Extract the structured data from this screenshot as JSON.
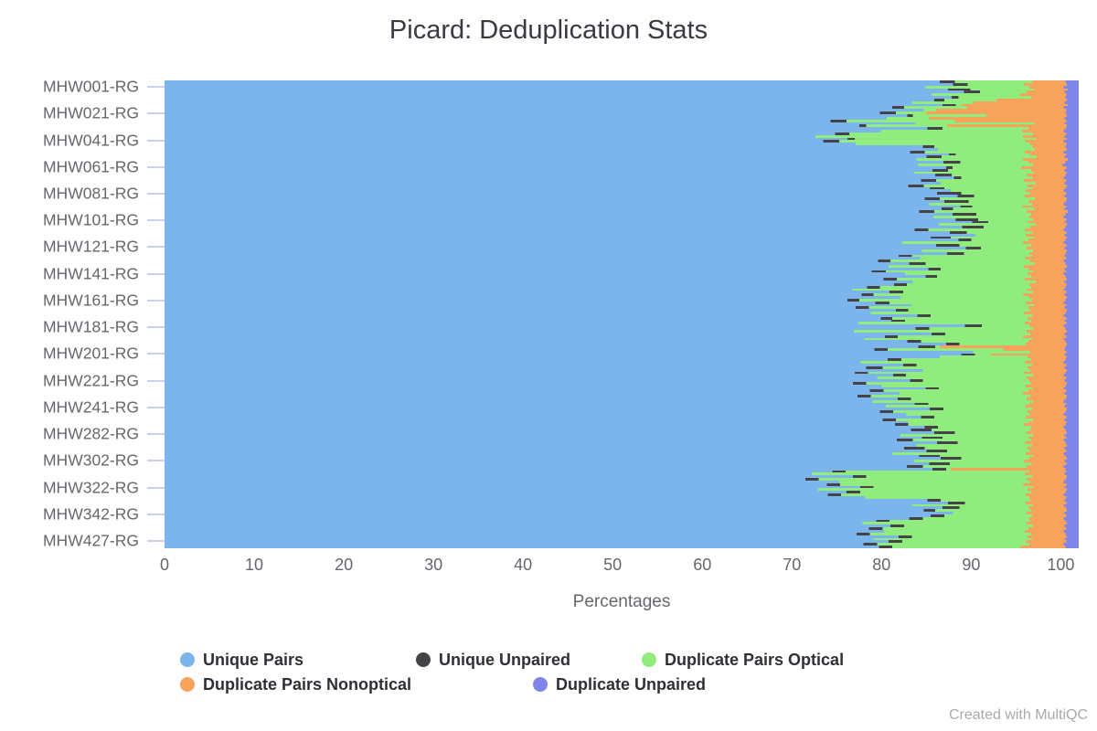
{
  "title": "Picard: Deduplication Stats",
  "xlabel": "Percentages",
  "watermark": "Created with MultiQC",
  "axes": {
    "x_ticks": [
      0,
      10,
      20,
      30,
      40,
      50,
      60,
      70,
      80,
      90,
      100
    ],
    "x_max": 102,
    "y_categories": [
      "MHW001-RG",
      "MHW021-RG",
      "MHW041-RG",
      "MHW061-RG",
      "MHW081-RG",
      "MHW101-RG",
      "MHW121-RG",
      "MHW141-RG",
      "MHW161-RG",
      "MHW181-RG",
      "MHW201-RG",
      "MHW221-RG",
      "MHW241-RG",
      "MHW282-RG",
      "MHW302-RG",
      "MHW322-RG",
      "MHW342-RG",
      "MHW427-RG"
    ]
  },
  "legend": {
    "items": [
      {
        "label": "Unique Pairs",
        "color": "#7cb5ec"
      },
      {
        "label": "Unique Unpaired",
        "color": "#434348"
      },
      {
        "label": "Duplicate Pairs Optical",
        "color": "#90ed7d"
      },
      {
        "label": "Duplicate Pairs Nonoptical",
        "color": "#f7a35c"
      },
      {
        "label": "Duplicate Unpaired",
        "color": "#8085e9"
      }
    ]
  },
  "chart_data": {
    "type": "bar",
    "stacked": true,
    "horizontal": true,
    "percent": true,
    "title": "Picard: Deduplication Stats",
    "xlabel": "Percentages",
    "xlim": [
      0,
      102
    ],
    "grid": false,
    "legend_position": "bottom",
    "colors": [
      "#7cb5ec",
      "#434348",
      "#90ed7d",
      "#f7a35c",
      "#8085e9"
    ],
    "categories": [
      "MHW001-RG",
      "MHW021-RG",
      "MHW041-RG",
      "MHW061-RG",
      "MHW081-RG",
      "MHW101-RG",
      "MHW121-RG",
      "MHW141-RG",
      "MHW161-RG",
      "MHW181-RG",
      "MHW201-RG",
      "MHW221-RG",
      "MHW241-RG",
      "MHW282-RG",
      "MHW302-RG",
      "MHW322-RG",
      "MHW342-RG",
      "MHW427-RG"
    ],
    "series": [
      {
        "name": "Unique Pairs",
        "color": "#7cb5ec",
        "values": [
          87.4,
          82.9,
          73.5,
          87.2,
          88.5,
          90.1,
          89.4,
          84.9,
          79.3,
          83.8,
          88.9,
          76.8,
          85.4,
          82.1,
          85.3,
          72.9,
          85.5,
          80.8
        ]
      },
      {
        "name": "Unique Unpaired",
        "color": "#434348",
        "values": [
          2.5,
          0.6,
          1.8,
          0.7,
          1.8,
          1.8,
          1.7,
          1.3,
          1.6,
          1.5,
          1.5,
          1.5,
          1.5,
          0,
          2.3,
          0,
          1.5,
          1.5
        ]
      },
      {
        "name": "Duplicate Pairs Optical",
        "color": "#90ed7d",
        "values": [
          7.1,
          8.2,
          20.8,
          7.7,
          5.7,
          4.4,
          5.1,
          10.5,
          15.2,
          11.6,
          1.8,
          18.4,
          9.9,
          14.8,
          9.1,
          23.4,
          9.8,
          13.8
        ]
      },
      {
        "name": "Duplicate Pairs Nonoptical",
        "color": "#f7a35c",
        "values": [
          3.8,
          9.0,
          4.2,
          5.0,
          4.4,
          4.1,
          4.2,
          3.8,
          4.2,
          3.6,
          8.2,
          4.0,
          3.9,
          3.5,
          3.9,
          4.4,
          3.8,
          4.5
        ]
      },
      {
        "name": "Duplicate Unpaired",
        "color": "#8085e9",
        "values": [
          1.2,
          1.3,
          1.7,
          1.4,
          1.6,
          1.6,
          1.6,
          1.5,
          1.7,
          1.5,
          1.6,
          1.3,
          1.3,
          1.6,
          1.4,
          1.3,
          1.4,
          1.4
        ]
      }
    ],
    "stack_total_pct": 102,
    "rows_cumulative_pct": [
      [
        86.5,
        88.2,
        96.8,
        100.5
      ],
      [
        88.0,
        89.6,
        95.9,
        100.7
      ],
      [
        84.9,
        84.9,
        96.5,
        100.3
      ],
      [
        87.4,
        89.9,
        97.0,
        100.8
      ],
      [
        89.2,
        91.0,
        96.2,
        100.4
      ],
      [
        85.6,
        85.6,
        95.4,
        100.6
      ],
      [
        87.8,
        88.6,
        96.7,
        100.5
      ],
      [
        85.9,
        87.0,
        92.8,
        100.7
      ],
      [
        83.4,
        83.4,
        90.2,
        100.4
      ],
      [
        86.8,
        88.3,
        88.9,
        100.8
      ],
      [
        81.2,
        82.5,
        89.5,
        100.3
      ],
      [
        84.7,
        84.7,
        86.1,
        100.6
      ],
      [
        79.8,
        81.6,
        84.9,
        100.5
      ],
      [
        82.9,
        83.5,
        91.7,
        100.7
      ],
      [
        80.6,
        80.6,
        85.3,
        100.4
      ],
      [
        74.3,
        76.1,
        88.2,
        100.6
      ],
      [
        83.8,
        83.8,
        97.1,
        100.4
      ],
      [
        77.5,
        78.3,
        87.3,
        100.7
      ],
      [
        85.1,
        86.8,
        96.4,
        100.5
      ],
      [
        79.9,
        79.9,
        95.7,
        100.3
      ],
      [
        74.8,
        76.4,
        96.9,
        100.6
      ],
      [
        72.6,
        72.6,
        95.8,
        100.4
      ],
      [
        76.2,
        77.0,
        97.2,
        100.7
      ],
      [
        73.5,
        75.3,
        96.1,
        100.3
      ],
      [
        77.1,
        77.1,
        96.6,
        100.6
      ],
      [
        84.6,
        85.9,
        96.8,
        100.5
      ],
      [
        86.3,
        86.3,
        97.1,
        100.7
      ],
      [
        83.2,
        84.8,
        96.0,
        100.3
      ],
      [
        87.5,
        88.3,
        96.6,
        100.6
      ],
      [
        85.0,
        86.7,
        97.3,
        100.4
      ],
      [
        83.9,
        83.9,
        95.8,
        100.8
      ],
      [
        86.9,
        88.8,
        96.4,
        100.5
      ],
      [
        84.1,
        84.1,
        96.9,
        100.2
      ],
      [
        87.2,
        87.9,
        95.6,
        100.6
      ],
      [
        85.7,
        87.4,
        96.7,
        100.4
      ],
      [
        83.6,
        83.6,
        97.0,
        100.7
      ],
      [
        86.0,
        87.8,
        96.2,
        100.5
      ],
      [
        88.1,
        88.9,
        96.8,
        100.3
      ],
      [
        84.4,
        86.1,
        95.9,
        100.6
      ],
      [
        86.6,
        86.6,
        97.2,
        100.4
      ],
      [
        83.0,
        84.7,
        96.3,
        100.7
      ],
      [
        85.4,
        87.0,
        96.9,
        100.5
      ],
      [
        87.7,
        87.7,
        96.1,
        100.3
      ],
      [
        86.2,
        88.9,
        96.6,
        100.6
      ],
      [
        88.5,
        90.3,
        96.0,
        100.4
      ],
      [
        84.8,
        86.5,
        97.1,
        100.7
      ],
      [
        87.0,
        89.7,
        96.4,
        100.5
      ],
      [
        85.3,
        85.3,
        96.8,
        100.3
      ],
      [
        88.8,
        90.1,
        95.7,
        100.6
      ],
      [
        86.7,
        88.0,
        97.0,
        100.4
      ],
      [
        84.2,
        85.9,
        96.2,
        100.8
      ],
      [
        87.9,
        90.6,
        96.7,
        100.5
      ],
      [
        85.8,
        85.8,
        96.5,
        100.3
      ],
      [
        88.3,
        90.8,
        96.9,
        100.6
      ],
      [
        90.1,
        91.9,
        96.3,
        100.4
      ],
      [
        86.4,
        86.4,
        97.2,
        100.7
      ],
      [
        89.0,
        91.4,
        96.6,
        100.5
      ],
      [
        83.7,
        85.2,
        96.0,
        100.3
      ],
      [
        87.6,
        89.5,
        96.8,
        100.6
      ],
      [
        90.5,
        90.5,
        96.1,
        100.4
      ],
      [
        85.5,
        87.7,
        97.0,
        100.7
      ],
      [
        88.6,
        90.0,
        96.4,
        100.5
      ],
      [
        82.3,
        82.3,
        95.8,
        100.3
      ],
      [
        86.1,
        88.7,
        96.7,
        100.6
      ],
      [
        89.4,
        91.1,
        96.2,
        100.4
      ],
      [
        84.5,
        84.5,
        96.9,
        100.7
      ],
      [
        87.3,
        89.2,
        96.5,
        100.5
      ],
      [
        81.9,
        83.4,
        96.8,
        100.4
      ],
      [
        84.3,
        84.3,
        96.1,
        100.6
      ],
      [
        79.6,
        81.0,
        96.6,
        100.3
      ],
      [
        83.1,
        84.9,
        97.1,
        100.5
      ],
      [
        80.8,
        80.8,
        95.9,
        100.7
      ],
      [
        85.2,
        86.6,
        96.4,
        100.4
      ],
      [
        78.9,
        80.5,
        96.9,
        100.6
      ],
      [
        82.6,
        82.6,
        96.3,
        100.3
      ],
      [
        84.9,
        86.2,
        96.7,
        100.5
      ],
      [
        80.2,
        81.7,
        96.0,
        100.7
      ],
      [
        83.5,
        83.5,
        97.2,
        100.4
      ],
      [
        81.4,
        82.8,
        96.5,
        100.6
      ],
      [
        78.4,
        79.8,
        96.7,
        100.5
      ],
      [
        76.7,
        76.7,
        96.2,
        100.3
      ],
      [
        80.9,
        82.4,
        96.9,
        100.6
      ],
      [
        77.8,
        79.1,
        95.8,
        100.4
      ],
      [
        82.1,
        82.1,
        96.5,
        100.7
      ],
      [
        76.2,
        77.5,
        96.8,
        100.5
      ],
      [
        79.3,
        80.9,
        96.1,
        100.3
      ],
      [
        83.4,
        83.4,
        97.0,
        100.6
      ],
      [
        77.1,
        78.6,
        96.4,
        100.4
      ],
      [
        81.6,
        83.0,
        96.6,
        100.7
      ],
      [
        78.8,
        78.8,
        95.9,
        100.5
      ],
      [
        84.0,
        85.5,
        96.8,
        100.3
      ],
      [
        79.9,
        81.2,
        96.3,
        100.6
      ],
      [
        81.1,
        82.6,
        96.7,
        100.4
      ],
      [
        77.4,
        77.4,
        96.0,
        100.6
      ],
      [
        89.3,
        91.2,
        96.5,
        100.3
      ],
      [
        83.8,
        85.3,
        96.9,
        100.5
      ],
      [
        76.9,
        76.9,
        96.2,
        100.7
      ],
      [
        85.6,
        87.1,
        96.6,
        100.4
      ],
      [
        80.4,
        81.8,
        95.8,
        100.6
      ],
      [
        78.1,
        78.1,
        96.8,
        100.3
      ],
      [
        82.9,
        84.4,
        96.4,
        100.5
      ],
      [
        87.2,
        88.7,
        96.1,
        100.7
      ],
      [
        84.1,
        86.0,
        86.5,
        100.5
      ],
      [
        79.2,
        80.7,
        93.6,
        100.4
      ],
      [
        90.2,
        90.2,
        96.6,
        100.6
      ],
      [
        88.9,
        90.4,
        92.2,
        100.4
      ],
      [
        86.5,
        86.5,
        96.3,
        100.6
      ],
      [
        80.7,
        82.2,
        96.7,
        100.5
      ],
      [
        77.6,
        77.6,
        96.0,
        100.3
      ],
      [
        82.4,
        83.9,
        96.8,
        100.6
      ],
      [
        78.3,
        80.1,
        96.3,
        100.4
      ],
      [
        84.6,
        84.6,
        96.6,
        100.7
      ],
      [
        77.0,
        78.5,
        95.9,
        100.5
      ],
      [
        81.3,
        82.7,
        96.9,
        100.3
      ],
      [
        79.5,
        79.5,
        96.2,
        100.6
      ],
      [
        83.2,
        84.6,
        96.5,
        100.4
      ],
      [
        76.8,
        78.3,
        96.7,
        100.7
      ],
      [
        80.0,
        80.0,
        96.1,
        100.5
      ],
      [
        84.9,
        86.4,
        96.8,
        100.3
      ],
      [
        78.7,
        80.2,
        96.4,
        100.6
      ],
      [
        82.0,
        82.0,
        95.8,
        100.4
      ],
      [
        77.3,
        78.8,
        96.6,
        100.7
      ],
      [
        81.8,
        83.3,
        96.2,
        100.5
      ],
      [
        79.0,
        79.0,
        96.9,
        100.3
      ],
      [
        83.7,
        85.2,
        96.5,
        100.6
      ],
      [
        80.5,
        80.5,
        96.0,
        100.4
      ],
      [
        85.4,
        86.9,
        96.8,
        100.7
      ],
      [
        79.8,
        81.3,
        96.3,
        100.5
      ],
      [
        82.7,
        82.7,
        96.6,
        100.3
      ],
      [
        84.4,
        85.9,
        96.1,
        100.6
      ],
      [
        80.1,
        81.6,
        96.9,
        100.4
      ],
      [
        83.0,
        83.0,
        96.4,
        100.7
      ],
      [
        81.5,
        83.0,
        95.9,
        100.5
      ],
      [
        84.8,
        86.3,
        96.7,
        100.3
      ],
      [
        83.3,
        85.6,
        96.6,
        100.5
      ],
      [
        85.9,
        88.2,
        96.2,
        100.7
      ],
      [
        82.1,
        82.1,
        96.9,
        100.4
      ],
      [
        84.5,
        86.8,
        96.4,
        100.6
      ],
      [
        81.7,
        83.5,
        96.7,
        100.3
      ],
      [
        86.2,
        88.5,
        96.0,
        100.5
      ],
      [
        83.9,
        83.9,
        96.8,
        100.7
      ],
      [
        82.5,
        84.8,
        96.3,
        100.4
      ],
      [
        85.0,
        87.3,
        96.6,
        100.6
      ],
      [
        81.2,
        81.2,
        96.1,
        100.3
      ],
      [
        84.2,
        86.5,
        96.9,
        100.5
      ],
      [
        86.6,
        88.9,
        96.5,
        100.7
      ],
      [
        83.6,
        83.6,
        95.9,
        100.4
      ],
      [
        85.3,
        87.6,
        96.7,
        100.6
      ],
      [
        82.8,
        84.6,
        96.2,
        100.3
      ],
      [
        85.7,
        87.2,
        87.7,
        100.5
      ],
      [
        74.5,
        76.0,
        96.5,
        100.6
      ],
      [
        72.2,
        72.2,
        96.0,
        100.4
      ],
      [
        76.8,
        78.3,
        96.8,
        100.7
      ],
      [
        71.5,
        73.0,
        96.2,
        100.5
      ],
      [
        75.3,
        75.3,
        96.6,
        100.3
      ],
      [
        73.9,
        75.4,
        95.8,
        100.6
      ],
      [
        77.6,
        79.1,
        96.9,
        100.4
      ],
      [
        72.9,
        72.9,
        96.3,
        100.7
      ],
      [
        76.1,
        77.6,
        96.7,
        100.5
      ],
      [
        74.0,
        75.5,
        96.1,
        100.3
      ],
      [
        78.2,
        78.2,
        96.5,
        100.6
      ],
      [
        85.1,
        86.6,
        96.6,
        100.4
      ],
      [
        87.4,
        89.3,
        96.1,
        100.6
      ],
      [
        83.4,
        83.4,
        96.9,
        100.3
      ],
      [
        86.8,
        88.7,
        96.4,
        100.5
      ],
      [
        84.7,
        86.0,
        96.7,
        100.7
      ],
      [
        88.0,
        88.0,
        96.2,
        100.4
      ],
      [
        85.5,
        87.0,
        96.8,
        100.6
      ],
      [
        83.1,
        84.6,
        96.5,
        100.3
      ],
      [
        79.4,
        80.9,
        96.6,
        100.5
      ],
      [
        77.9,
        77.9,
        96.2,
        100.7
      ],
      [
        81.0,
        82.5,
        96.9,
        100.4
      ],
      [
        78.6,
        80.1,
        96.4,
        100.6
      ],
      [
        80.3,
        80.3,
        96.0,
        100.3
      ],
      [
        77.2,
        78.7,
        96.7,
        100.5
      ],
      [
        81.9,
        83.4,
        96.3,
        100.7
      ],
      [
        79.1,
        79.1,
        96.8,
        100.4
      ],
      [
        80.8,
        82.3,
        96.1,
        100.6
      ],
      [
        78.0,
        79.5,
        96.5,
        100.3
      ],
      [
        79.7,
        81.2,
        95.5,
        100.5
      ]
    ]
  }
}
